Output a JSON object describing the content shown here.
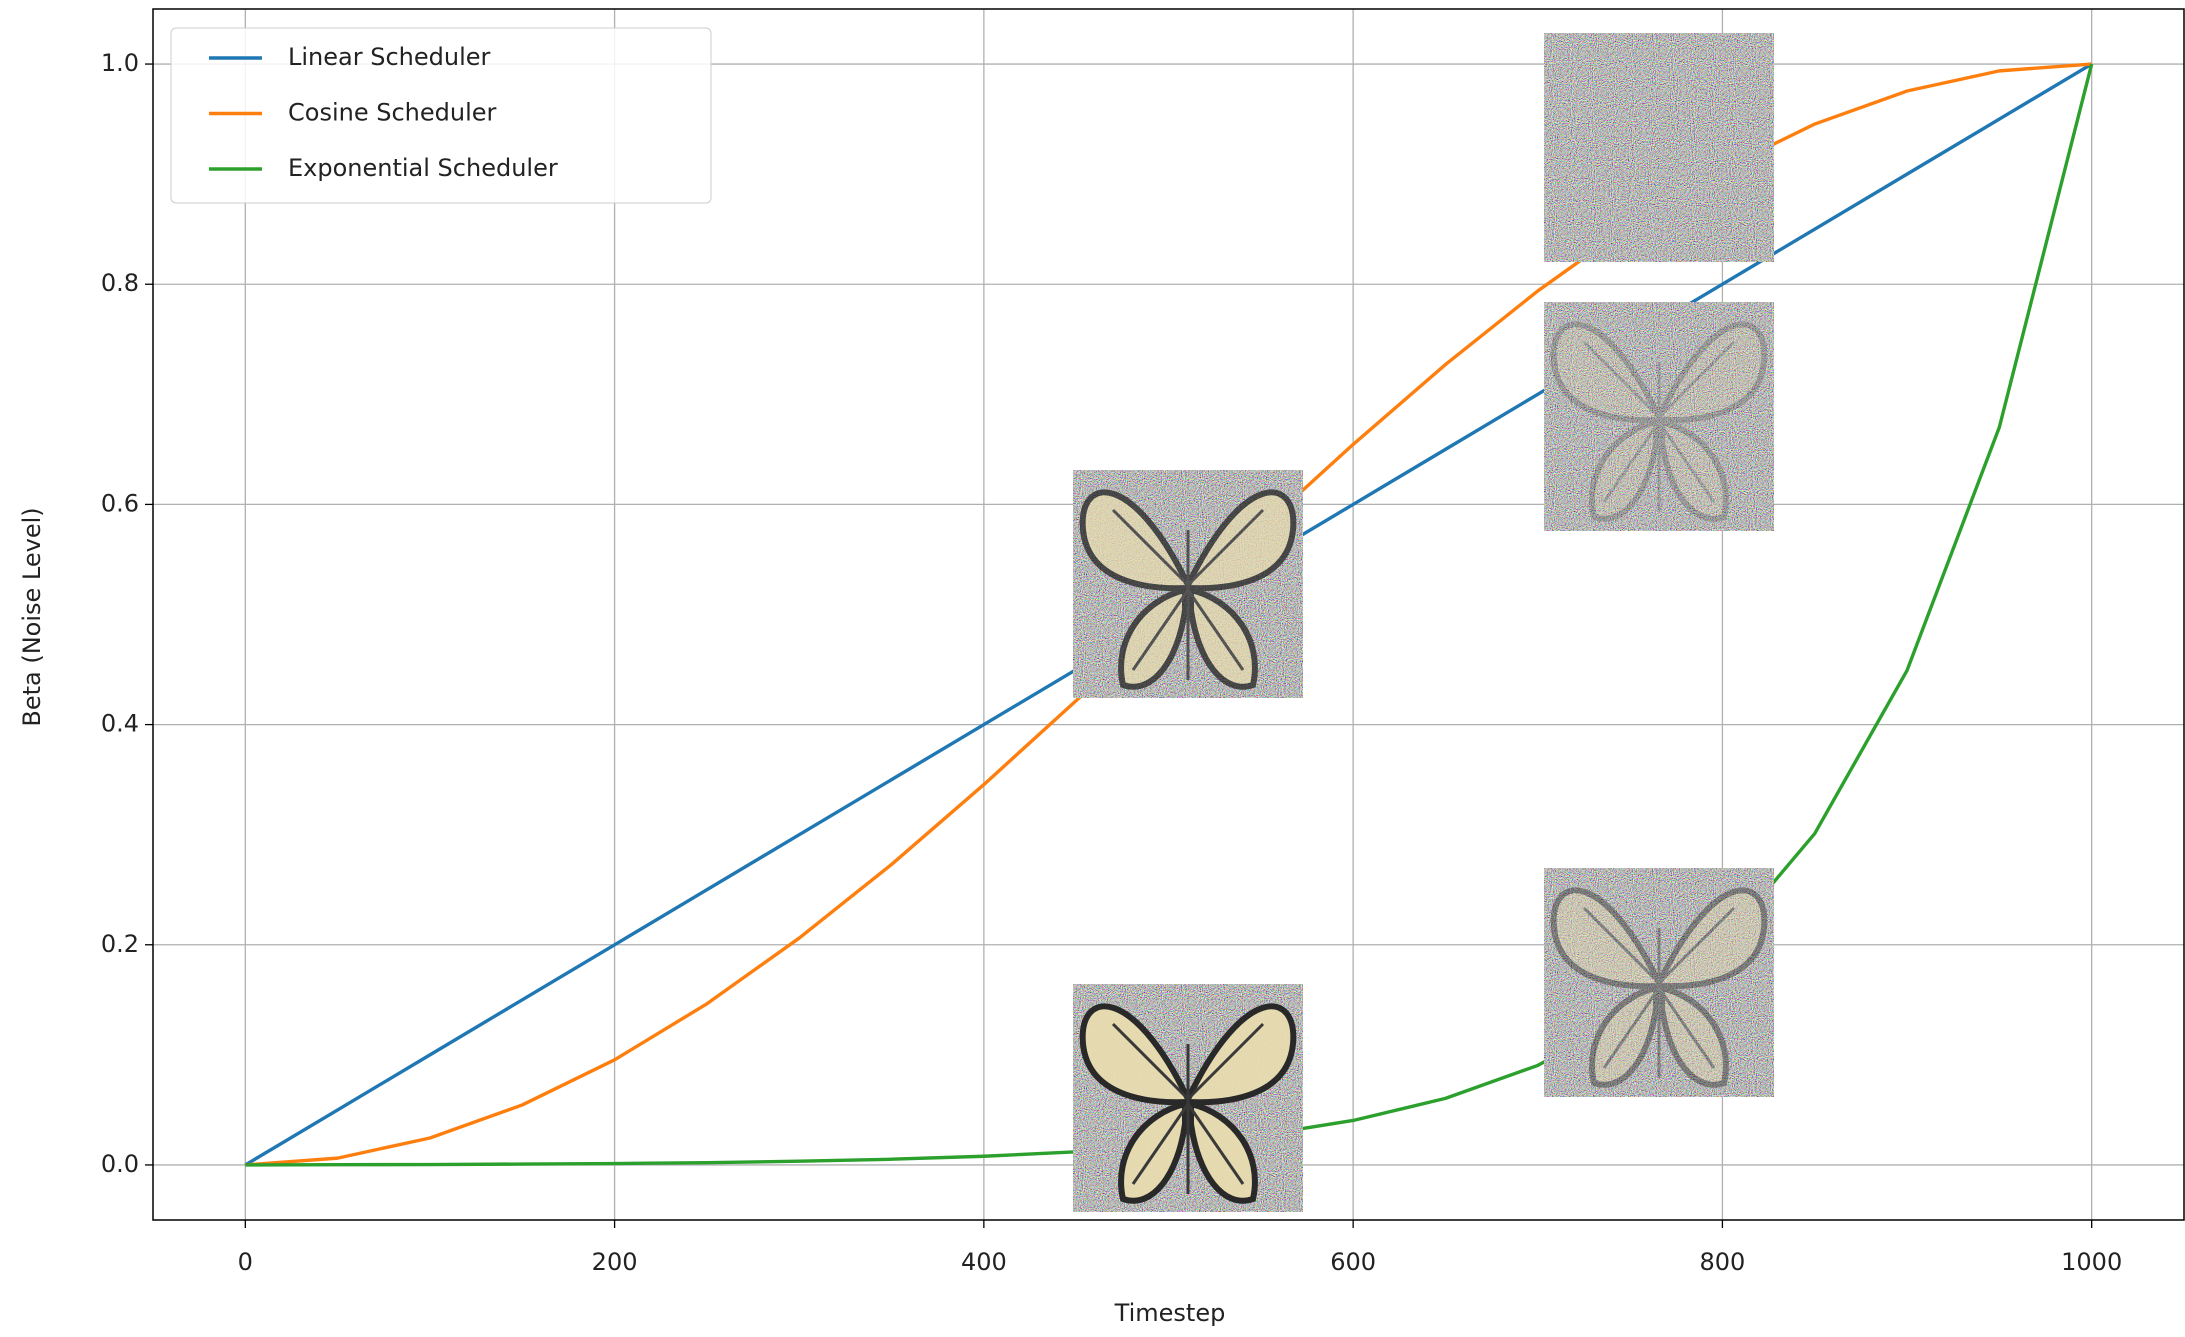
{
  "chart_data": {
    "type": "line",
    "x_label": "Timestep",
    "y_label": "Beta (Noise Level)",
    "x": [
      0,
      50,
      100,
      150,
      200,
      250,
      300,
      350,
      400,
      450,
      500,
      550,
      600,
      650,
      700,
      750,
      800,
      850,
      900,
      950,
      1000
    ],
    "series": [
      {
        "name": "Linear Scheduler",
        "color": "#1f77b4",
        "values": [
          0,
          0.05,
          0.1,
          0.15,
          0.2,
          0.25,
          0.3,
          0.35,
          0.4,
          0.45,
          0.5,
          0.55,
          0.6,
          0.65,
          0.7,
          0.75,
          0.8,
          0.85,
          0.9,
          0.95,
          1.0
        ]
      },
      {
        "name": "Cosine Scheduler",
        "color": "#ff7f0e",
        "values": [
          0,
          0.0062,
          0.0245,
          0.0545,
          0.0955,
          0.1464,
          0.2061,
          0.273,
          0.3455,
          0.4218,
          0.5,
          0.5782,
          0.6545,
          0.727,
          0.7939,
          0.8536,
          0.9045,
          0.9455,
          0.9755,
          0.9938,
          1.0
        ]
      },
      {
        "name": "Exponential Scheduler",
        "color": "#2ca02c",
        "values": [
          0,
          0.0002,
          0.0004,
          0.0008,
          0.0013,
          0.0021,
          0.0034,
          0.0052,
          0.0079,
          0.0119,
          0.018,
          0.027,
          0.0404,
          0.0605,
          0.0904,
          0.1351,
          0.2016,
          0.301,
          0.4492,
          0.6702,
          1.0
        ]
      }
    ],
    "xlim": [
      -50,
      1050
    ],
    "xticks": [
      0,
      200,
      400,
      600,
      800,
      1000
    ],
    "ylim": [
      -0.05,
      1.05
    ],
    "yticks": [
      {
        "value": 0,
        "label": "0.0"
      },
      {
        "value": 0.2,
        "label": "0.2"
      },
      {
        "value": 0.4,
        "label": "0.4"
      },
      {
        "value": 0.6,
        "label": "0.6"
      },
      {
        "value": 0.8,
        "label": "0.8"
      },
      {
        "value": 1,
        "label": "1.0"
      }
    ],
    "grid": true,
    "legend": "upper left"
  }
}
